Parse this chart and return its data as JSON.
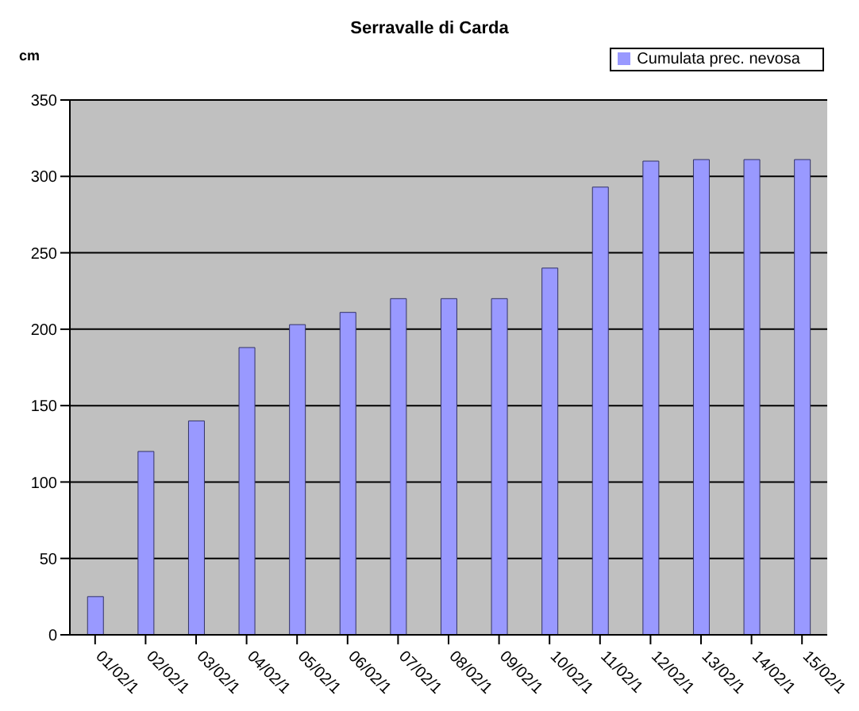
{
  "chart_data": {
    "type": "bar",
    "title": "Serravalle di Carda",
    "ylabel": "cm",
    "categories": [
      "01/02/1",
      "02/02/1",
      "03/02/1",
      "04/02/1",
      "05/02/1",
      "06/02/1",
      "07/02/1",
      "08/02/1",
      "09/02/1",
      "10/02/1",
      "11/02/1",
      "12/02/1",
      "13/02/1",
      "14/02/1",
      "15/02/1"
    ],
    "series": [
      {
        "name": "Cumulata prec. nevosa",
        "color": "#9999ff",
        "values": [
          25,
          120,
          140,
          188,
          203,
          211,
          220,
          220,
          220,
          240,
          293,
          310,
          311,
          311,
          311
        ]
      }
    ],
    "ylim": [
      0,
      350
    ],
    "yticks": [
      0,
      50,
      100,
      150,
      200,
      250,
      300,
      350
    ],
    "grid": "y",
    "legend": "top right"
  }
}
